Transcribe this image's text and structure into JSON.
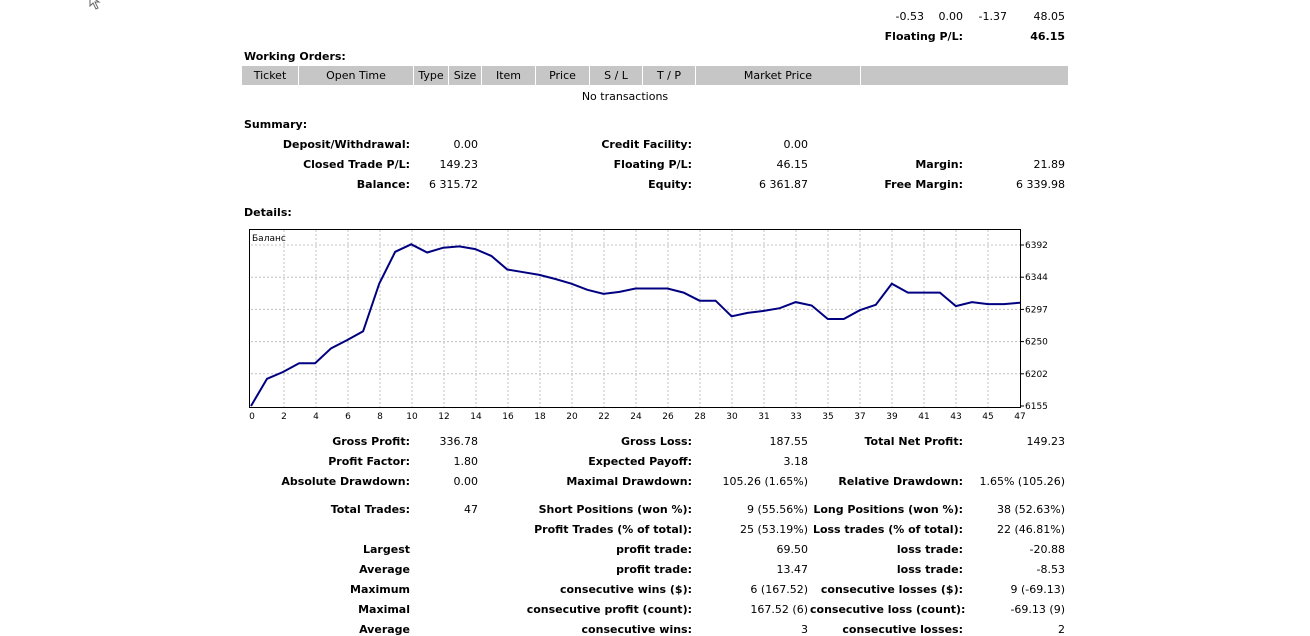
{
  "open_positions_tail": {
    "values": [
      "-0.53",
      "0.00",
      "-1.37",
      "48.05"
    ],
    "floating_label": "Floating P/L:",
    "floating_value": "46.15"
  },
  "working_orders": {
    "title": "Working Orders:",
    "columns": [
      "Ticket",
      "Open Time",
      "Type",
      "Size",
      "Item",
      "Price",
      "S / L",
      "T / P",
      "Market Price",
      ""
    ],
    "empty_text": "No transactions"
  },
  "summary": {
    "title": "Summary:",
    "deposit_label": "Deposit/Withdrawal:",
    "deposit_value": "0.00",
    "credit_label": "Credit Facility:",
    "credit_value": "0.00",
    "closed_label": "Closed Trade P/L:",
    "closed_value": "149.23",
    "floating_label": "Floating P/L:",
    "floating_value": "46.15",
    "margin_label": "Margin:",
    "margin_value": "21.89",
    "balance_label": "Balance:",
    "balance_value": "6 315.72",
    "equity_label": "Equity:",
    "equity_value": "6 361.87",
    "free_margin_label": "Free Margin:",
    "free_margin_value": "6 339.98"
  },
  "details": {
    "title": "Details:",
    "gross_profit_label": "Gross Profit:",
    "gross_profit_value": "336.78",
    "gross_loss_label": "Gross Loss:",
    "gross_loss_value": "187.55",
    "total_net_label": "Total Net Profit:",
    "total_net_value": "149.23",
    "profit_factor_label": "Profit Factor:",
    "profit_factor_value": "1.80",
    "expected_payoff_label": "Expected Payoff:",
    "expected_payoff_value": "3.18",
    "absolute_dd_label": "Absolute Drawdown:",
    "absolute_dd_value": "0.00",
    "maximal_dd_label": "Maximal Drawdown:",
    "maximal_dd_value": "105.26 (1.65%)",
    "relative_dd_label": "Relative Drawdown:",
    "relative_dd_value": "1.65% (105.26)",
    "total_trades_label": "Total Trades:",
    "total_trades_value": "47",
    "short_label": "Short Positions (won %):",
    "short_value": "9 (55.56%)",
    "long_label": "Long Positions (won %):",
    "long_value": "38 (52.63%)",
    "profit_trades_label": "Profit Trades (% of total):",
    "profit_trades_value": "25 (53.19%)",
    "loss_trades_label": "Loss trades (% of total):",
    "loss_trades_value": "22 (46.81%)",
    "largest_label": "Largest",
    "largest_profit_label": "profit trade:",
    "largest_profit_value": "69.50",
    "largest_loss_label": "loss trade:",
    "largest_loss_value": "-20.88",
    "average_label": "Average",
    "average_profit_label": "profit trade:",
    "average_profit_value": "13.47",
    "average_loss_label": "loss trade:",
    "average_loss_value": "-8.53",
    "maximum_label": "Maximum",
    "max_cons_wins_label": "consecutive wins ($):",
    "max_cons_wins_value": "6 (167.52)",
    "max_cons_losses_label": "consecutive losses ($):",
    "max_cons_losses_value": "9 (-69.13)",
    "maximal_label": "Maximal",
    "maximal_cons_profit_label": "consecutive profit (count):",
    "maximal_cons_profit_value": "167.52 (6)",
    "maximal_cons_loss_label": "consecutive loss (count):",
    "maximal_cons_loss_value": "-69.13 (9)",
    "average2_label": "Average",
    "avg_cons_wins_label": "consecutive wins:",
    "avg_cons_wins_value": "3",
    "avg_cons_losses_label": "consecutive losses:",
    "avg_cons_losses_value": "2"
  },
  "colors": {
    "line": "#000080",
    "grid": "#c0c0c0",
    "header_bg": "#c6c6c6"
  },
  "chart_data": {
    "type": "line",
    "title": "Баланс",
    "xlabel": "",
    "ylabel": "",
    "x_tick_labels": [
      "0",
      "2",
      "4",
      "6",
      "8",
      "10",
      "12",
      "14",
      "16",
      "18",
      "20",
      "22",
      "24",
      "26",
      "28",
      "30",
      "31",
      "33",
      "35",
      "37",
      "39",
      "41",
      "43",
      "45",
      "47"
    ],
    "y_tick_labels": [
      "6392",
      "6344",
      "6297",
      "6250",
      "6202",
      "6155"
    ],
    "xlim": [
      0,
      48
    ],
    "ylim": [
      6155,
      6392
    ],
    "grid": true,
    "series": [
      {
        "x": [
          0,
          1,
          2,
          3,
          4,
          5,
          6,
          7,
          8,
          9,
          10,
          11,
          12,
          13,
          14,
          15,
          16,
          17,
          18,
          19,
          20,
          21,
          22,
          23,
          24,
          25,
          26,
          27,
          28,
          29,
          30,
          31,
          32,
          33,
          34,
          35,
          36,
          37,
          38,
          39,
          40,
          41,
          42,
          43,
          44,
          45,
          46,
          47,
          48
        ],
        "values": [
          6155,
          6195,
          6205,
          6218,
          6218,
          6240,
          6252,
          6265,
          6335,
          6382,
          6393,
          6381,
          6388,
          6390,
          6386,
          6376,
          6356,
          6352,
          6348,
          6342,
          6335,
          6326,
          6320,
          6323,
          6328,
          6328,
          6328,
          6322,
          6310,
          6310,
          6287,
          6292,
          6295,
          6299,
          6308,
          6303,
          6283,
          6283,
          6296,
          6304,
          6335,
          6322,
          6322,
          6322,
          6302,
          6308,
          6305,
          6305,
          6307
        ]
      }
    ]
  }
}
